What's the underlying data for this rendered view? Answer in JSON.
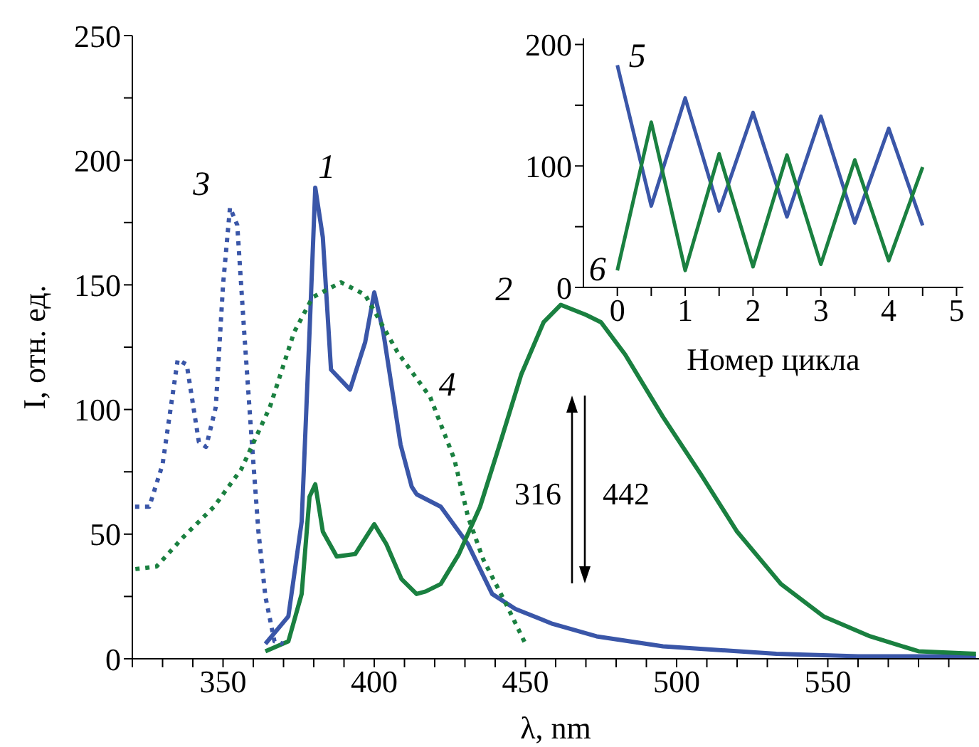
{
  "chart_data": [
    {
      "type": "line",
      "xlabel": "λ, nm",
      "ylabel": "I, отн. ед.",
      "xlim": [
        320,
        600
      ],
      "ylim": [
        0,
        250
      ],
      "xticks": [
        {
          "value": 320,
          "label": null
        },
        {
          "value": 330,
          "label": null
        },
        {
          "value": 340,
          "label": null
        },
        350,
        {
          "value": 360,
          "label": null
        },
        {
          "value": 370,
          "label": null
        },
        {
          "value": 380,
          "label": null
        },
        {
          "value": 390,
          "label": null
        },
        400,
        {
          "value": 410,
          "label": null
        },
        {
          "value": 420,
          "label": null
        },
        {
          "value": 430,
          "label": null
        },
        {
          "value": 440,
          "label": null
        },
        450,
        {
          "value": 460,
          "label": null
        },
        {
          "value": 470,
          "label": null
        },
        {
          "value": 480,
          "label": null
        },
        {
          "value": 490,
          "label": null
        },
        500,
        {
          "value": 510,
          "label": null
        },
        {
          "value": 520,
          "label": null
        },
        {
          "value": 530,
          "label": null
        },
        {
          "value": 540,
          "label": null
        },
        550,
        {
          "value": 560,
          "label": null
        },
        {
          "value": 570,
          "label": null
        },
        {
          "value": 580,
          "label": null
        },
        {
          "value": 590,
          "label": null
        }
      ],
      "yticks": [
        0,
        {
          "value": 25,
          "label": null
        },
        50,
        {
          "value": 75,
          "label": null
        },
        100,
        {
          "value": 125,
          "label": null
        },
        150,
        {
          "value": 175,
          "label": null
        },
        200,
        {
          "value": 225,
          "label": null
        },
        250
      ],
      "grid": false,
      "legend": false,
      "marker": "none",
      "series": [
        {
          "name": "1",
          "color": "#3a56a8",
          "line_style": "solid",
          "x": [
            364,
            371.6,
            376,
            378.6,
            380.5,
            383,
            385.7,
            392,
            397,
            400,
            403,
            408.7,
            412.4,
            414,
            422,
            431,
            439,
            446.7,
            459,
            473.5,
            495.5,
            533,
            560,
            599
          ],
          "values": [
            6,
            17,
            55,
            131,
            189,
            169,
            116,
            108,
            127,
            147,
            131,
            86,
            69,
            66,
            61,
            46,
            26,
            20,
            14,
            9,
            5,
            2,
            1,
            1
          ]
        },
        {
          "name": "2",
          "color": "#1a8040",
          "line_style": "solid",
          "x": [
            364,
            371.6,
            376,
            378.6,
            380.5,
            383,
            387.6,
            393.7,
            400,
            404,
            409,
            414,
            417,
            422,
            428,
            435,
            441.5,
            448.6,
            456,
            461.7,
            470,
            475,
            483,
            495.5,
            508,
            520,
            534.5,
            548.6,
            564,
            580,
            599
          ],
          "values": [
            3,
            7,
            26,
            65,
            70,
            51,
            41,
            42,
            54,
            46,
            32,
            26,
            27,
            30,
            42,
            61,
            86,
            114,
            135,
            142,
            138,
            135,
            122,
            97,
            74,
            51,
            30,
            17,
            9,
            3,
            2
          ]
        },
        {
          "name": "3",
          "color": "#3a56a8",
          "line_style": "dotted",
          "x": [
            320.9,
            325.6,
            330,
            335,
            338,
            342,
            344.4,
            347.6,
            350,
            352.3,
            354.7,
            357,
            359.4,
            361.7,
            364,
            367,
            370
          ],
          "values": [
            61,
            61,
            78,
            120,
            118,
            87,
            85,
            101,
            150,
            181,
            174,
            131,
            89,
            51,
            25,
            7,
            6
          ]
        },
        {
          "name": "4",
          "color": "#1a8040",
          "line_style": "dotted",
          "x": [
            321,
            328,
            337,
            347,
            356,
            365.5,
            373.5,
            379.6,
            389,
            397,
            407.7,
            418.5,
            426.5,
            431,
            436,
            444,
            450
          ],
          "values": [
            36,
            37,
            49,
            61,
            76,
            101,
            131,
            145,
            151,
            146,
            123,
            105,
            80,
            57,
            40,
            21,
            6
          ]
        }
      ],
      "annotations": [
        "316",
        "442"
      ]
    },
    {
      "type": "line",
      "xlabel": "Номер цикла",
      "xlim": [
        -0.5,
        5.1
      ],
      "ylim": [
        0,
        205
      ],
      "xticks": [
        0,
        {
          "value": 0.5,
          "label": null
        },
        1,
        {
          "value": 1.5,
          "label": null
        },
        2,
        {
          "value": 2.5,
          "label": null
        },
        3,
        {
          "value": 3.5,
          "label": null
        },
        4,
        {
          "value": 4.5,
          "label": null
        },
        5
      ],
      "yticks": [
        0,
        {
          "value": 50,
          "label": null
        },
        100,
        {
          "value": 150,
          "label": null
        },
        200
      ],
      "grid": false,
      "legend": false,
      "marker": "none",
      "x": [
        0,
        0.5,
        1,
        1.5,
        2,
        2.5,
        3,
        3.5,
        4,
        4.5
      ],
      "series": [
        {
          "name": "5",
          "color": "#3a56a8",
          "line_style": "solid",
          "values": [
            183,
            67,
            156,
            63,
            144,
            58,
            141,
            53,
            131,
            51
          ]
        },
        {
          "name": "6",
          "color": "#1a8040",
          "line_style": "solid",
          "values": [
            14,
            136,
            14,
            110,
            17,
            109,
            19,
            105,
            22,
            99
          ]
        }
      ]
    }
  ]
}
